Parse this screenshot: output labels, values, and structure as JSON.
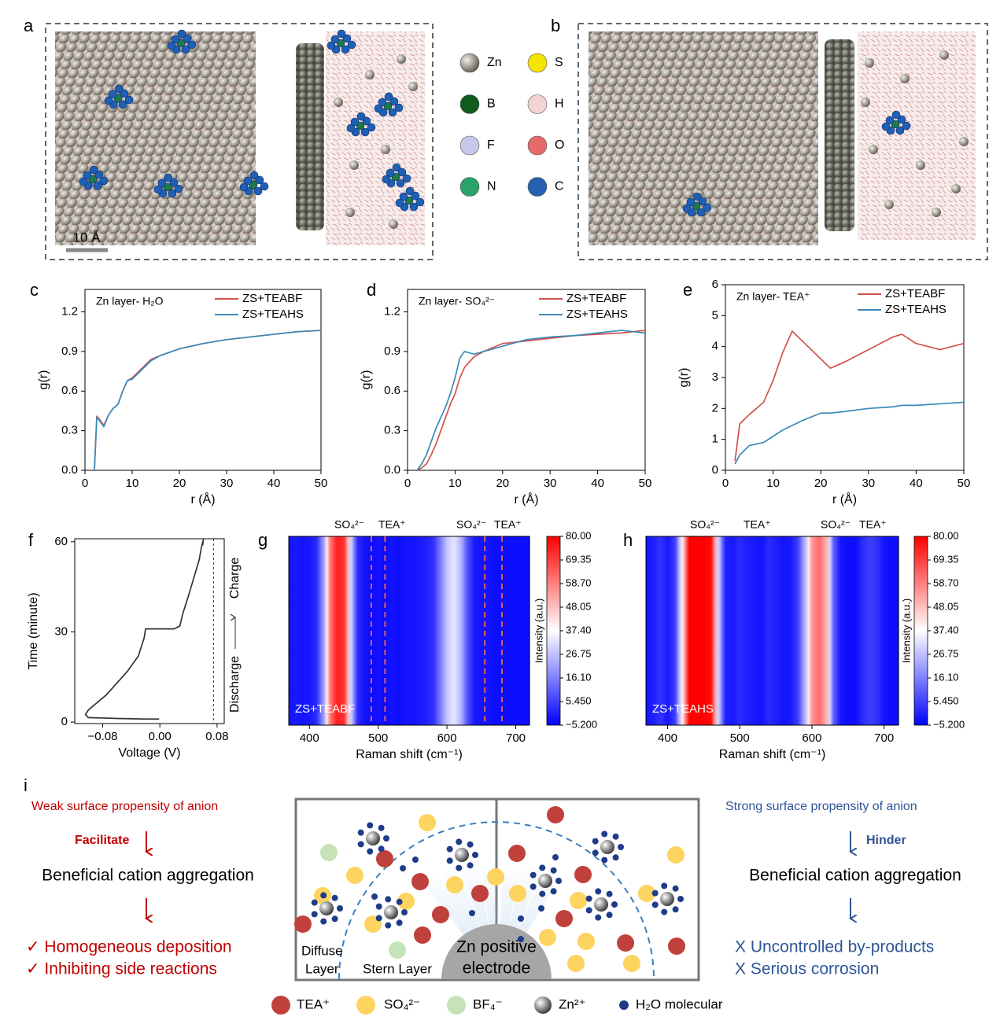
{
  "figure": {
    "panel_a": {
      "label": "a",
      "scale_bar": "10 Å"
    },
    "panel_b": {
      "label": "b"
    },
    "atom_legend": [
      "Zn",
      "S",
      "B",
      "H",
      "F",
      "O",
      "N",
      "C"
    ]
  },
  "chart_data": [
    {
      "type": "line",
      "label": "c",
      "title": "Zn layer- H₂O",
      "xlabel": "r (Å)",
      "ylabel": "g(r)",
      "x": [
        2,
        2.5,
        3,
        4,
        5,
        6,
        7,
        8,
        9,
        10,
        12,
        14,
        16,
        20,
        25,
        30,
        35,
        40,
        45,
        50
      ],
      "series": [
        {
          "name": "ZS+TEABF",
          "color": "#d2504c",
          "values": [
            0,
            0.41,
            0.39,
            0.34,
            0.42,
            0.47,
            0.5,
            0.6,
            0.68,
            0.7,
            0.77,
            0.84,
            0.87,
            0.92,
            0.96,
            0.99,
            1.01,
            1.03,
            1.05,
            1.06
          ]
        },
        {
          "name": "ZS+TEAHS",
          "color": "#3b8ab8",
          "values": [
            0,
            0.4,
            0.38,
            0.33,
            0.42,
            0.47,
            0.5,
            0.6,
            0.68,
            0.69,
            0.76,
            0.83,
            0.87,
            0.92,
            0.96,
            0.99,
            1.01,
            1.03,
            1.05,
            1.06
          ]
        }
      ],
      "xlim": [
        0,
        50
      ],
      "xticks": [
        0,
        10,
        20,
        30,
        40,
        50
      ],
      "ylim": [
        0,
        1.37
      ],
      "yticks": [
        {
          "value": 0,
          "label": "0.0"
        },
        0.3,
        0.6,
        0.9,
        1.2
      ]
    },
    {
      "type": "line",
      "label": "d",
      "title": "Zn layer- SO₄²⁻",
      "xlabel": "r (Å)",
      "ylabel": "g(r)",
      "x": [
        2,
        3,
        4,
        5,
        6,
        7,
        8,
        9,
        10,
        11,
        12,
        14,
        16,
        20,
        25,
        30,
        35,
        40,
        45,
        50
      ],
      "series": [
        {
          "name": "ZS+TEABF",
          "color": "#d2504c",
          "values": [
            0,
            0.02,
            0.05,
            0.12,
            0.2,
            0.3,
            0.4,
            0.5,
            0.58,
            0.7,
            0.78,
            0.86,
            0.9,
            0.96,
            0.98,
            1.0,
            1.02,
            1.03,
            1.04,
            1.06
          ]
        },
        {
          "name": "ZS+TEAHS",
          "color": "#3b8ab8",
          "values": [
            0,
            0.05,
            0.12,
            0.22,
            0.32,
            0.4,
            0.48,
            0.58,
            0.7,
            0.85,
            0.9,
            0.88,
            0.9,
            0.94,
            0.99,
            1.01,
            1.02,
            1.04,
            1.06,
            1.04
          ]
        }
      ],
      "xlim": [
        0,
        50
      ],
      "xticks": [
        0,
        10,
        20,
        30,
        40,
        50
      ],
      "ylim": [
        0,
        1.37
      ],
      "yticks": [
        {
          "value": 0,
          "label": "0.0"
        },
        0.3,
        0.6,
        0.9,
        1.2
      ]
    },
    {
      "type": "line",
      "label": "e",
      "title": "Zn layer- TEA⁺",
      "xlabel": "r (Å)",
      "ylabel": "g(r)",
      "x": [
        2,
        3,
        5,
        8,
        10,
        12,
        14,
        16,
        20,
        22,
        25,
        30,
        35,
        37,
        40,
        45,
        50
      ],
      "series": [
        {
          "name": "ZS+TEABF",
          "color": "#d2504c",
          "values": [
            0.3,
            1.5,
            1.8,
            2.2,
            2.9,
            3.8,
            4.5,
            4.2,
            3.6,
            3.3,
            3.5,
            3.9,
            4.3,
            4.4,
            4.1,
            3.9,
            4.1
          ]
        },
        {
          "name": "ZS+TEAHS",
          "color": "#3b8ab8",
          "values": [
            0.2,
            0.5,
            0.8,
            0.9,
            1.1,
            1.3,
            1.45,
            1.6,
            1.85,
            1.85,
            1.9,
            2.0,
            2.05,
            2.1,
            2.1,
            2.15,
            2.2
          ]
        }
      ],
      "xlim": [
        0,
        50
      ],
      "xticks": [
        0,
        10,
        20,
        30,
        40,
        50
      ],
      "ylim": [
        0,
        6
      ],
      "yticks": [
        0,
        1,
        2,
        3,
        4,
        5,
        6
      ]
    },
    {
      "type": "line",
      "label": "f",
      "xlabel": "Voltage (V)",
      "ylabel": "Time (minute)",
      "color": "#333333",
      "x": [
        -0.001,
        -0.02,
        -0.06,
        -0.1,
        -0.104,
        -0.1,
        -0.09,
        -0.075,
        -0.06,
        -0.045,
        -0.03,
        -0.022,
        -0.02,
        0,
        0.02,
        0.028,
        0.032,
        0.04,
        0.045,
        0.05,
        0.055,
        0.058,
        0.06,
        0.06,
        0.061
      ],
      "values": [
        1,
        1,
        1.2,
        1.5,
        2.5,
        4,
        6,
        9,
        13,
        17,
        22,
        28,
        31,
        31,
        31,
        32,
        36,
        42,
        46,
        50,
        54,
        58,
        60,
        59,
        61
      ],
      "xlim": [
        -0.119,
        0.09
      ],
      "xticks": [
        {
          "value": -0.08,
          "label": "−0.08"
        },
        {
          "value": 0,
          "label": "0.00"
        },
        0.08
      ],
      "ylim": [
        -0.5,
        61
      ],
      "yticks": [
        0,
        30,
        60
      ],
      "dashed_line_x": 0.075,
      "annotations": [
        "Discharge",
        "Charge"
      ]
    },
    {
      "type": "heatmap",
      "label": "g",
      "xlabel": "Raman shift (cm⁻¹)",
      "sample": "ZS+TEABF",
      "annotations": [
        "SO₄²⁻",
        "TEA⁺",
        "SO₄²⁻",
        "TEA⁺"
      ],
      "marker_lines": [
        490,
        510,
        655,
        680
      ],
      "x": [
        370,
        380,
        390,
        400,
        410,
        420,
        430,
        440,
        450,
        460,
        470,
        480,
        490,
        500,
        510,
        520,
        530,
        540,
        550,
        560,
        570,
        580,
        590,
        600,
        610,
        620,
        630,
        640,
        650,
        660,
        670,
        680,
        690,
        700,
        710,
        720
      ],
      "values": [
        -2,
        -1,
        -2,
        -1,
        2,
        20,
        60,
        75,
        72,
        30,
        2,
        -2,
        -3,
        -2,
        -3,
        -2,
        -3,
        -2,
        -2,
        -1,
        0,
        3,
        15,
        28,
        33,
        25,
        8,
        -1,
        -2,
        -2,
        -3,
        -3,
        -3,
        -3,
        -3,
        -3
      ],
      "xlim": [
        370,
        720
      ],
      "xticks": [
        400,
        500,
        600,
        700
      ],
      "colorbar_label": "Intensity (a.u.)",
      "clim": [
        -5.2,
        80
      ],
      "cticks": [
        {
          "value": 80,
          "label": "80.00"
        },
        69.35,
        {
          "value": 58.7,
          "label": "58.70"
        },
        48.05,
        {
          "value": 37.4,
          "label": "37.40"
        },
        26.75,
        {
          "value": 16.1,
          "label": "16.10"
        },
        {
          "value": 5.45,
          "label": "5.450"
        },
        {
          "value": -5.2,
          "label": "−5.200"
        }
      ]
    },
    {
      "type": "heatmap",
      "label": "h",
      "xlabel": "Raman shift (cm⁻¹)",
      "sample": "ZS+TEAHS",
      "annotations": [
        "SO₄²⁻",
        "TEA⁺",
        "SO₄²⁻",
        "TEA⁺"
      ],
      "x": [
        370,
        380,
        390,
        400,
        410,
        420,
        430,
        440,
        450,
        460,
        470,
        480,
        490,
        500,
        510,
        520,
        530,
        540,
        550,
        560,
        570,
        580,
        590,
        600,
        610,
        620,
        630,
        640,
        650,
        660,
        670,
        680,
        690,
        700,
        710,
        720
      ],
      "values": [
        -2,
        0,
        3,
        -1,
        5,
        40,
        80,
        80,
        80,
        78,
        30,
        0,
        -1,
        2,
        0,
        -1,
        -2,
        2,
        0,
        -2,
        -1,
        5,
        25,
        55,
        62,
        50,
        10,
        -2,
        -3,
        -3,
        2,
        5,
        3,
        -2,
        -3,
        -3
      ],
      "xlim": [
        370,
        720
      ],
      "xticks": [
        400,
        500,
        600,
        700
      ],
      "colorbar_label": "Intensity (a.u.)",
      "clim": [
        -5.2,
        80
      ],
      "cticks": [
        {
          "value": 80,
          "label": "80.00"
        },
        69.35,
        {
          "value": 58.7,
          "label": "58.70"
        },
        48.05,
        {
          "value": 37.4,
          "label": "37.40"
        },
        26.75,
        {
          "value": 16.1,
          "label": "16.10"
        },
        {
          "value": 5.45,
          "label": "5.450"
        },
        {
          "value": -5.2,
          "label": "−5.200"
        }
      ]
    }
  ],
  "diagram": {
    "label": "i",
    "left": {
      "title": "Weak surface propensity of anion",
      "arrow_label": "Facilitate",
      "result": "Beneficial cation aggregation",
      "outcomes": [
        "✓  Homogeneous deposition",
        "✓  Inhibiting side reactions"
      ]
    },
    "right": {
      "title": "Strong surface propensity  of anion",
      "arrow_label": "Hinder",
      "result": "Beneficial cation aggregation",
      "outcomes": [
        "X  Uncontrolled by-products",
        "X  Serious corrosion"
      ]
    },
    "diffuse_layer": [
      "Diffuse",
      "Layer"
    ],
    "stern_layer": "Stern Layer",
    "electrode": [
      "Zn positive",
      "electrode"
    ],
    "legend": [
      "TEA⁺",
      "SO₄²⁻",
      "BF₄⁻",
      "Zn²⁺",
      "H₂O molecular"
    ]
  }
}
